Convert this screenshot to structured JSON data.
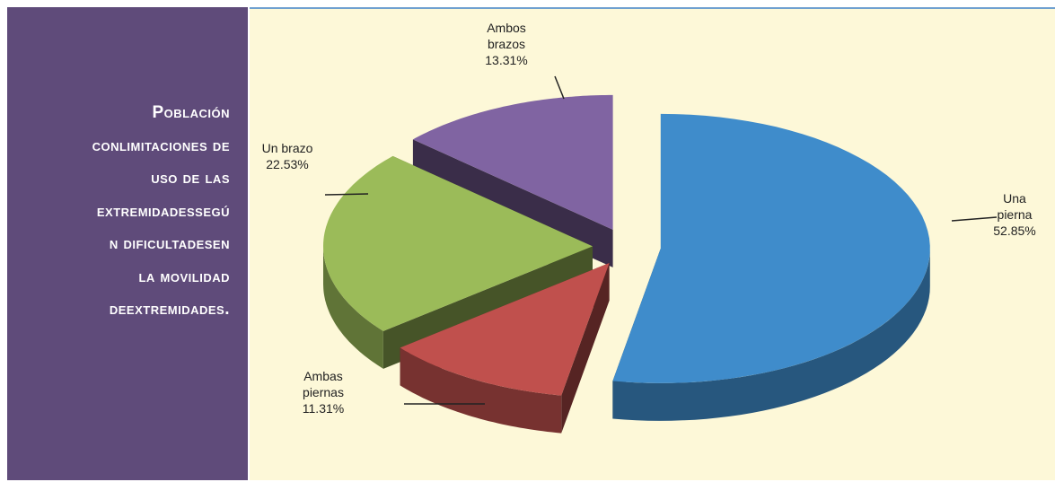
{
  "chart_data": {
    "type": "pie3d",
    "title_lines": [
      "Población",
      "conlimitaciones de",
      "uso de las",
      "extremidadessegú",
      "n dificultadesen",
      "la movilidad",
      "deextremidades."
    ],
    "categories": [
      "Una pierna",
      "Ambas piernas",
      "Un brazo",
      "Ambos brazos"
    ],
    "values": [
      52.85,
      11.31,
      22.53,
      13.31
    ],
    "value_labels": [
      "52.85%",
      "11.31%",
      "22.53%",
      "13.31%"
    ],
    "colors": [
      "#3f8ccb",
      "#c0504d",
      "#9bbb59",
      "#8064a2"
    ]
  }
}
